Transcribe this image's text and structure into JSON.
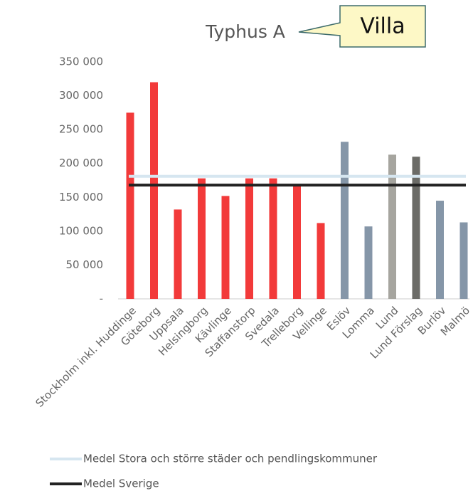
{
  "chart_data": {
    "type": "bar",
    "title": "Typhus A",
    "annotation": "Villa",
    "categories": [
      "Stockholm inkl. Huddinge",
      "Göteborg",
      "Uppsala",
      "Helsingborg",
      "Kävlinge",
      "Staffanstorp",
      "Svedala",
      "Trelleborg",
      "Vellinge",
      "Eslöv",
      "Lomma",
      "Lund",
      "Lund Förslag",
      "Burlöv",
      "Malmö"
    ],
    "values": [
      275000,
      320000,
      132000,
      178000,
      152000,
      178000,
      178000,
      168000,
      112000,
      232000,
      107000,
      213000,
      210000,
      145000,
      113000
    ],
    "colors": [
      "#f23a3a",
      "#f23a3a",
      "#f23a3a",
      "#f23a3a",
      "#f23a3a",
      "#f23a3a",
      "#f23a3a",
      "#f23a3a",
      "#f23a3a",
      "#8596a8",
      "#8596a8",
      "#a6a59f",
      "#6b6b67",
      "#8596a8",
      "#8596a8"
    ],
    "reference_lines": [
      {
        "name": "Medel Stora och större städer och pendlingskommuner",
        "color": "#d6e6f0",
        "value": 181000
      },
      {
        "name": "Medel Sverige",
        "color": "#222222",
        "value": 168000
      }
    ],
    "ylim": [
      0,
      350000
    ],
    "yticks": [
      {
        "value": 0,
        "label": "-"
      },
      {
        "value": 50000,
        "label": "50 000"
      },
      {
        "value": 100000,
        "label": "100 000"
      },
      {
        "value": 150000,
        "label": "150 000"
      },
      {
        "value": 200000,
        "label": "200 000"
      },
      {
        "value": 250000,
        "label": "250 000"
      },
      {
        "value": 300000,
        "label": "300 000"
      },
      {
        "value": 350000,
        "label": "350 000"
      }
    ]
  }
}
